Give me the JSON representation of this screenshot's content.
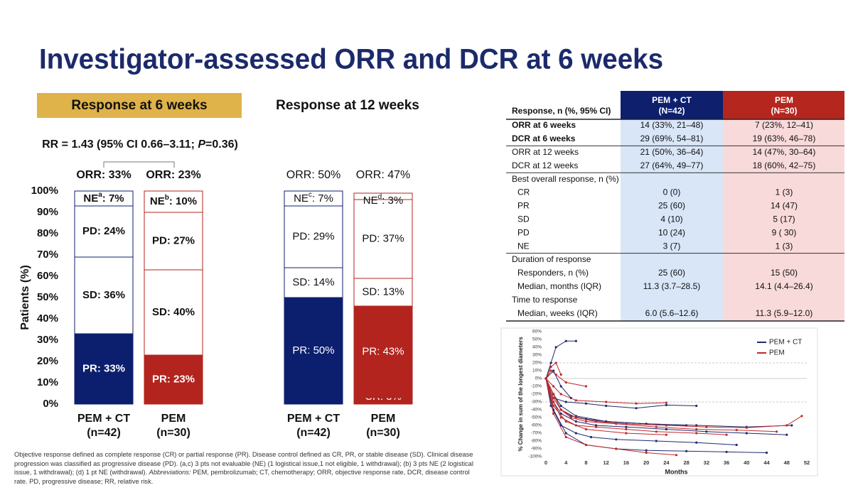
{
  "title": "Investigator-assessed ORR and DCR at 6 weeks",
  "chart_data": [
    {
      "type": "bar",
      "stacked": true,
      "title": "Response at 6 weeks",
      "subtitle": [
        "RR = 1.43 (95% CI 0.66–3.11; ",
        "P",
        "=0.36)"
      ],
      "ylabel": "Patients (%)",
      "ylim": [
        0,
        100
      ],
      "yticks": [
        {
          "value": 0,
          "label": "0%"
        },
        {
          "value": 10,
          "label": "10%"
        },
        {
          "value": 20,
          "label": "20%"
        },
        {
          "value": 30,
          "label": "30%"
        },
        {
          "value": 40,
          "label": "40%"
        },
        {
          "value": 50,
          "label": "50%"
        },
        {
          "value": 60,
          "label": "60%"
        },
        {
          "value": 70,
          "label": "70%"
        },
        {
          "value": 80,
          "label": "80%"
        },
        {
          "value": 90,
          "label": "90%"
        },
        {
          "value": 100,
          "label": "100%"
        }
      ],
      "categories": [
        [
          "PEM + CT",
          "(n=42)"
        ],
        [
          "PEM",
          "(n=30)"
        ]
      ],
      "colors": [
        "#0c1f6e",
        "#b3241f"
      ],
      "top_labels": [
        "ORR: 33%",
        "ORR: 23%"
      ],
      "series": [
        {
          "name": "CR",
          "filled": true,
          "values": [
            0,
            0
          ],
          "value_labels": [
            ": 0%",
            ": 0%"
          ]
        },
        {
          "name": "PR",
          "filled": true,
          "values": [
            33,
            23
          ],
          "value_labels": [
            ": 33%",
            ": 23%"
          ]
        },
        {
          "name": "SD",
          "filled": false,
          "values": [
            36,
            40
          ],
          "value_labels": [
            ": 36%",
            ": 40%"
          ]
        },
        {
          "name": "PD",
          "filled": false,
          "values": [
            24,
            27
          ],
          "value_labels": [
            ": 24%",
            ": 27%"
          ]
        },
        {
          "name": "NE",
          "filled": false,
          "values": [
            7,
            10
          ],
          "value_labels": [
            ": 7%",
            ": 10%"
          ],
          "notes": [
            "a",
            "b"
          ]
        }
      ]
    },
    {
      "type": "bar",
      "stacked": true,
      "title": "Response at 12 weeks",
      "ylim": [
        0,
        100
      ],
      "categories": [
        [
          "PEM + CT",
          "(n=42)"
        ],
        [
          "PEM",
          "(n=30)"
        ]
      ],
      "colors": [
        "#0c1f6e",
        "#b3241f"
      ],
      "top_labels": [
        "ORR: 50%",
        "ORR: 47%"
      ],
      "series": [
        {
          "name": "CR",
          "filled": true,
          "values": [
            0,
            3
          ],
          "value_labels": [
            ": 0%",
            ": 3%"
          ]
        },
        {
          "name": "PR",
          "filled": true,
          "values": [
            50,
            43
          ],
          "value_labels": [
            ": 50%",
            ": 43%"
          ]
        },
        {
          "name": "SD",
          "filled": false,
          "values": [
            14,
            13
          ],
          "value_labels": [
            ": 14%",
            ": 13%"
          ]
        },
        {
          "name": "PD",
          "filled": false,
          "values": [
            29,
            37
          ],
          "value_labels": [
            ": 29%",
            ": 37%"
          ]
        },
        {
          "name": "NE",
          "filled": false,
          "values": [
            7,
            3
          ],
          "value_labels": [
            ": 7%",
            ": 3%"
          ],
          "notes": [
            "c",
            "d"
          ]
        }
      ]
    },
    {
      "type": "line",
      "ylabel": "% Change in sum of the longest diameters",
      "xlabel": "Months",
      "xlim": [
        0,
        52
      ],
      "xticks": [
        0,
        4,
        8,
        12,
        16,
        20,
        24,
        28,
        32,
        36,
        40,
        44,
        48,
        52
      ],
      "ylim": [
        -100,
        60
      ],
      "yticks": [
        {
          "value": -100,
          "label": "-100%"
        },
        {
          "value": -90,
          "label": "-90%"
        },
        {
          "value": -80,
          "label": "-80%"
        },
        {
          "value": -70,
          "label": "-70%"
        },
        {
          "value": -60,
          "label": "-60%"
        },
        {
          "value": -50,
          "label": "-50%"
        },
        {
          "value": -40,
          "label": "-40%"
        },
        {
          "value": -30,
          "label": "-30%"
        },
        {
          "value": -20,
          "label": "-20%"
        },
        {
          "value": -10,
          "label": "-10%"
        },
        {
          "value": 0,
          "label": "0%"
        },
        {
          "value": 10,
          "label": "10%"
        },
        {
          "value": 20,
          "label": "20%"
        },
        {
          "value": 30,
          "label": "30%"
        },
        {
          "value": 40,
          "label": "40%"
        },
        {
          "value": 50,
          "label": "50%"
        },
        {
          "value": 60,
          "label": "60%"
        }
      ],
      "reference_lines": [
        20,
        0,
        -30
      ],
      "legend": "upper right",
      "series": [
        {
          "name": "PEM + CT",
          "color": "#1f2a6e",
          "lines": [
            {
              "x": [
                0,
                1,
                2,
                4,
                6
              ],
              "values": [
                0,
                20,
                40,
                48,
                48
              ]
            },
            {
              "x": [
                0,
                1.5,
                3,
                6,
                10,
                16,
                24,
                32,
                40,
                48
              ],
              "values": [
                0,
                -30,
                -45,
                -55,
                -60,
                -62,
                -65,
                -68,
                -70,
                -72
              ]
            },
            {
              "x": [
                0,
                1.5,
                3,
                5,
                8,
                12,
                20,
                28
              ],
              "values": [
                0,
                -20,
                -40,
                -48,
                -52,
                -55,
                -58,
                -60
              ]
            },
            {
              "x": [
                0,
                1,
                3,
                6,
                9,
                14,
                22,
                30,
                38
              ],
              "values": [
                0,
                -35,
                -60,
                -70,
                -75,
                -78,
                -80,
                -82,
                -85
              ]
            },
            {
              "x": [
                0,
                1.5,
                4,
                8,
                14,
                20,
                28,
                36,
                44
              ],
              "values": [
                0,
                -40,
                -70,
                -85,
                -90,
                -92,
                -93,
                -94,
                -95
              ]
            },
            {
              "x": [
                0,
                1.5,
                3,
                5
              ],
              "values": [
                0,
                10,
                -10,
                -25
              ]
            },
            {
              "x": [
                0,
                1.5,
                4,
                8,
                12,
                18,
                24,
                30
              ],
              "values": [
                0,
                -25,
                -30,
                -32,
                -35,
                -38,
                -34,
                -35
              ]
            },
            {
              "x": [
                0,
                1.5,
                3,
                6,
                12,
                20,
                30,
                40,
                49
              ],
              "values": [
                0,
                -20,
                -35,
                -48,
                -55,
                -58,
                -60,
                -62,
                -60
              ]
            }
          ]
        },
        {
          "name": "PEM",
          "color": "#c0282a",
          "lines": [
            {
              "x": [
                0,
                1.5,
                3,
                6,
                10,
                16,
                24,
                32,
                40,
                48,
                51
              ],
              "values": [
                0,
                -25,
                -40,
                -50,
                -55,
                -58,
                -60,
                -62,
                -63,
                -60,
                -48
              ]
            },
            {
              "x": [
                0,
                1,
                2,
                3
              ],
              "values": [
                0,
                15,
                20,
                5
              ]
            },
            {
              "x": [
                0,
                1.5,
                3,
                6,
                10,
                16,
                22,
                30,
                36
              ],
              "values": [
                0,
                -30,
                -50,
                -60,
                -62,
                -65,
                -68,
                -70,
                -72
              ]
            },
            {
              "x": [
                0,
                1.5,
                4,
                8,
                14,
                20,
                26
              ],
              "values": [
                0,
                -45,
                -75,
                -85,
                -90,
                -95,
                -98
              ]
            },
            {
              "x": [
                0,
                1.5,
                3,
                6,
                12,
                18,
                24
              ],
              "values": [
                0,
                -10,
                -20,
                -28,
                -30,
                -32,
                -31
              ]
            },
            {
              "x": [
                0,
                1.5,
                3,
                5,
                8,
                14,
                22,
                30,
                38,
                46
              ],
              "values": [
                0,
                -20,
                -40,
                -50,
                -55,
                -58,
                -62,
                -65,
                -66,
                -68
              ]
            },
            {
              "x": [
                0,
                1,
                2,
                4,
                8
              ],
              "values": [
                0,
                10,
                5,
                -5,
                -10
              ]
            },
            {
              "x": [
                0,
                1.5,
                4,
                8,
                16,
                24
              ],
              "values": [
                0,
                -35,
                -55,
                -65,
                -70,
                -72
              ]
            }
          ]
        }
      ]
    }
  ],
  "table": {
    "columns": [
      [
        "Response, n (%, 95% CI)"
      ],
      [
        "PEM + CT",
        "(N=42)"
      ],
      [
        "PEM",
        "(N=30)"
      ]
    ],
    "groups": [
      [
        {
          "label": "ORR at 6 weeks",
          "values": [
            "14 (33%, 21–48)",
            "7 (23%, 12–41)"
          ]
        },
        {
          "label": "DCR at 6 weeks",
          "values": [
            "29 (69%, 54–81)",
            "19 (63%, 46–78)"
          ]
        }
      ],
      [
        {
          "label": "ORR at 12 weeks",
          "values": [
            "21 (50%, 36–64)",
            "14 (47%, 30–64)"
          ]
        },
        {
          "label": "DCR at 12 weeks",
          "values": [
            "27 (64%, 49–77)",
            "18 (60%, 42–75)"
          ]
        }
      ],
      [
        {
          "heading": "Best overall response, n (%)"
        },
        {
          "label": "CR",
          "values": [
            "0 (0)",
            "1 (3)"
          ]
        },
        {
          "label": "PR",
          "values": [
            "25 (60)",
            "14 (47)"
          ]
        },
        {
          "label": "SD",
          "values": [
            "4 (10)",
            "5 (17)"
          ]
        },
        {
          "label": "PD",
          "values": [
            "10 (24)",
            "9 ( 30)"
          ]
        },
        {
          "label": "NE",
          "values": [
            "3 (7)",
            "1 (3)"
          ]
        }
      ],
      [
        {
          "heading": "Duration of response"
        },
        {
          "label": "Responders, n (%)",
          "values": [
            "25 (60)",
            "15 (50)"
          ]
        },
        {
          "label": "Median, months (IQR)",
          "values": [
            "11.3 (3.7–28.5)",
            "14.1 (4.4–26.4)"
          ]
        },
        {
          "heading": "Time to response"
        },
        {
          "label": "Median, weeks (IQR)",
          "values": [
            "6.0 (5.6–12.6)",
            "11.3 (5.9–12.0)"
          ]
        }
      ]
    ]
  },
  "footnote": [
    "Objective response defined as complete response (CR) or partial response (PR). Disease control defined as CR, PR, or stable disease (SD). Clinical disease progression was classified as progressive disease (PD). (a,c) 3 pts not evaluable (NE) (1 logistical issue,1 not eligible, 1 withdrawal); (b) 3 pts NE (2 logistical issue, 1 withdrawal); (d) 1 pt NE (withdrawal). ",
    "Abbreviations:",
    " PEM, pembrolizumab; CT, chemotherapy; ORR, objective response rate, DCR, disease control rate. PD, progressive disease; RR, relative risk."
  ]
}
